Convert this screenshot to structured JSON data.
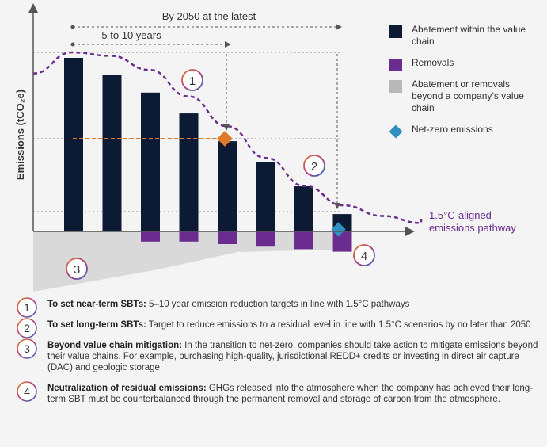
{
  "chart_data": {
    "type": "bar",
    "ylabel": "Emissions (tCO₂e)",
    "abatement": [
      100,
      90,
      80,
      68,
      52,
      40,
      26,
      10
    ],
    "removals": [
      4,
      4,
      5,
      6,
      7,
      8
    ],
    "pathway": [
      88,
      100,
      98,
      90,
      75,
      58,
      40,
      24,
      13,
      7,
      3
    ],
    "colors": {
      "abatement": "#0c1a33",
      "removals": "#6b2c8f",
      "beyond": "#b8b8b8",
      "netzero": "#2e8fc0",
      "pathway": "#6b2c8f",
      "nearterm": "#e07b2a"
    }
  },
  "annotations": {
    "horizon_long": "By 2050 at the latest",
    "horizon_short": "5 to 10 years"
  },
  "badges": [
    "1",
    "2",
    "3",
    "4"
  ],
  "legend": {
    "items": [
      {
        "label": "Abatement within the value chain",
        "color": "#0c1a33"
      },
      {
        "label": "Removals",
        "color": "#6b2c8f"
      },
      {
        "label": "Abatement or removals beyond a company’s value chain",
        "color": "#b8b8b8"
      },
      {
        "label": "Net-zero emissions",
        "color": "#2e8fc0"
      }
    ]
  },
  "pathway_label": "1.5°C-aligned emissions pathway",
  "notes": [
    {
      "num": "1",
      "title": "To set near-term SBTs:",
      "text": " 5–10 year emission reduction targets in line with 1.5°C pathways"
    },
    {
      "num": "2",
      "title": "To set long-term SBTs:",
      "text": " Target to reduce emissions to a residual level in line with 1.5°C scenarios by no later than 2050"
    },
    {
      "num": "3",
      "title": "Beyond value chain mitigation:",
      "text": " In the transition to net-zero, companies should take action to mitigate emissions beyond their value chains. For example, purchasing high-quality, jurisdictional REDD+ credits or investing in direct air capture (DAC) and geologic storage"
    },
    {
      "num": "4",
      "title": "Neutralization of residual emissions:",
      "text": " GHGs released into the atmosphere when the company has achieved their long-term SBT must be counterbalanced through the permanent removal and storage of carbon from the atmosphere."
    }
  ]
}
